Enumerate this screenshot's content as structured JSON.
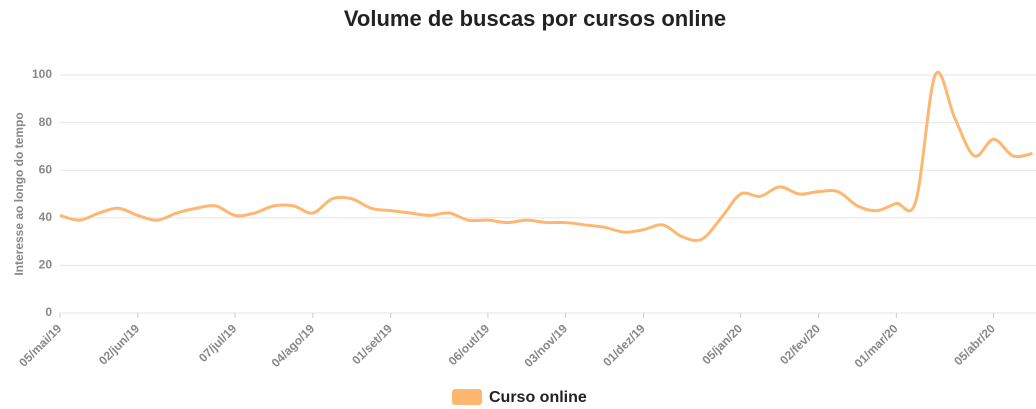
{
  "chart_data": {
    "type": "line",
    "title": "Volume de buscas por cursos online",
    "ylabel": "Interesse ao longo do tempo",
    "categories": [
      "05/mai/19",
      null,
      null,
      null,
      "02/jun/19",
      null,
      null,
      null,
      null,
      "07/jul/19",
      null,
      null,
      null,
      "04/ago/19",
      null,
      null,
      null,
      "01/set/19",
      null,
      null,
      null,
      null,
      "06/out/19",
      null,
      null,
      null,
      "03/nov/19",
      null,
      null,
      null,
      "01/dez/19",
      null,
      null,
      null,
      null,
      "05/jan/20",
      null,
      null,
      null,
      "02/fev/20",
      null,
      null,
      null,
      "01/mar/20",
      null,
      null,
      null,
      null,
      "05/abr/20",
      null,
      null
    ],
    "series": [
      {
        "name": "Curso online",
        "color": "#fdb771",
        "values": [
          41,
          39,
          42,
          44,
          41,
          39,
          42,
          44,
          45,
          41,
          42,
          45,
          45,
          42,
          48,
          48,
          44,
          43,
          42,
          41,
          42,
          39,
          39,
          38,
          39,
          38,
          38,
          37,
          36,
          34,
          35,
          37,
          32,
          31,
          40,
          50,
          49,
          53,
          50,
          51,
          51,
          45,
          43,
          46,
          47,
          100,
          82,
          66,
          73,
          66,
          67
        ]
      }
    ],
    "ylim": [
      0,
      100
    ],
    "yticks": [
      0,
      20,
      40,
      60,
      80,
      100
    ],
    "grid": true,
    "legend": "bottom"
  }
}
